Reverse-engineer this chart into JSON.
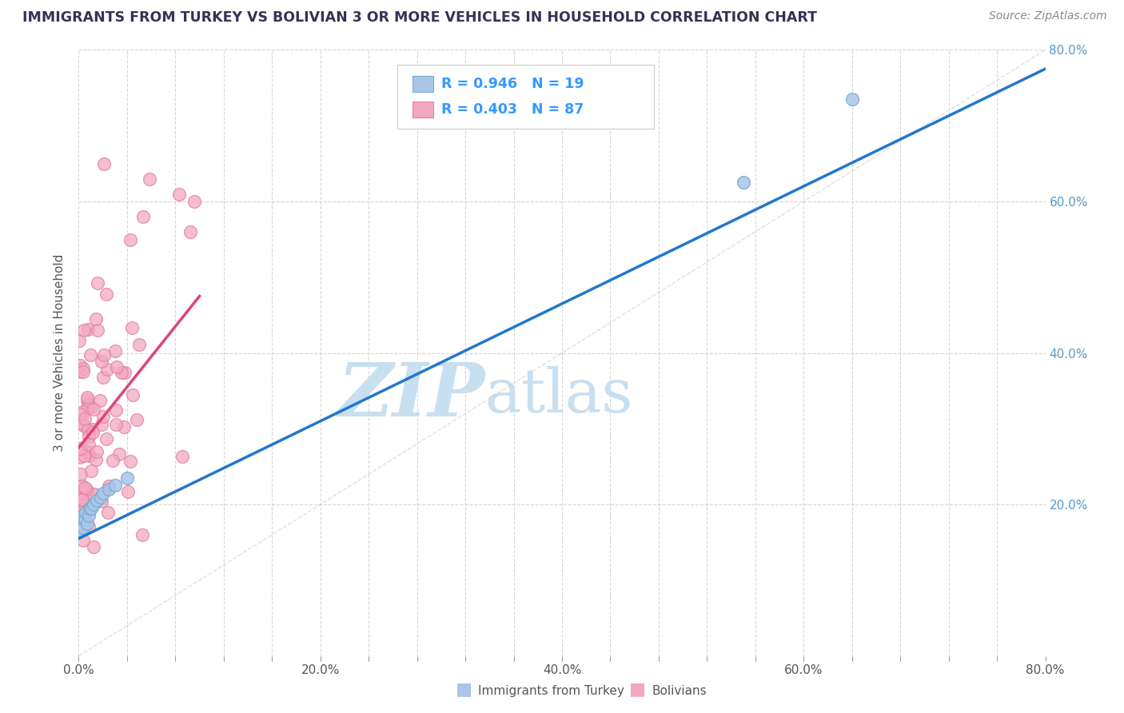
{
  "title": "IMMIGRANTS FROM TURKEY VS BOLIVIAN 3 OR MORE VEHICLES IN HOUSEHOLD CORRELATION CHART",
  "source_text": "Source: ZipAtlas.com",
  "ylabel": "3 or more Vehicles in Household",
  "xlim": [
    0.0,
    0.8
  ],
  "ylim": [
    0.0,
    0.8
  ],
  "xtick_labels": [
    "0.0%",
    "",
    "",
    "",
    "",
    "20.0%",
    "",
    "",
    "",
    "",
    "40.0%",
    "",
    "",
    "",
    "",
    "60.0%",
    "",
    "",
    "",
    "",
    "80.0%"
  ],
  "xtick_positions": [
    0.0,
    0.04,
    0.08,
    0.12,
    0.16,
    0.2,
    0.24,
    0.28,
    0.32,
    0.36,
    0.4,
    0.44,
    0.48,
    0.52,
    0.56,
    0.6,
    0.64,
    0.68,
    0.72,
    0.76,
    0.8
  ],
  "ytick_labels": [
    "20.0%",
    "40.0%",
    "60.0%",
    "80.0%"
  ],
  "ytick_positions": [
    0.2,
    0.4,
    0.6,
    0.8
  ],
  "legend_entries": [
    {
      "label": "Immigrants from Turkey",
      "color": "#aac5e8",
      "R": "0.946",
      "N": "19"
    },
    {
      "label": "Bolivians",
      "color": "#f4a8c0",
      "R": "0.403",
      "N": "87"
    }
  ],
  "scatter_turkey_color": "#aac5e8",
  "scatter_turkey_edge": "#7aaad0",
  "scatter_bolivian_color": "#f4a8c0",
  "scatter_bolivian_edge": "#e080a0",
  "turkey_line_color": "#2277cc",
  "bolivian_line_color": "#dd4477",
  "diag_line_color": "#cccccc",
  "watermark_zip": "ZIP",
  "watermark_atlas": "atlas",
  "watermark_color": "#c8dff0",
  "background_color": "#ffffff",
  "grid_color": "#cccccc",
  "title_color": "#333355",
  "axis_label_color": "#555555",
  "legend_R_color": "#3399ff",
  "tick_color_right": "#5599cc",
  "tick_color_bottom": "#555555"
}
